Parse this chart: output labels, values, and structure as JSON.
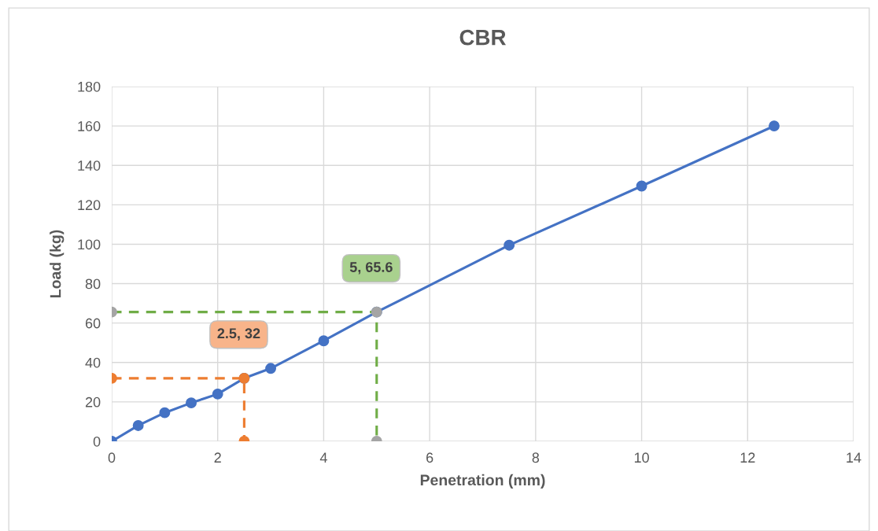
{
  "chart_data": {
    "type": "line",
    "title": "CBR",
    "xlabel": "Penetration (mm)",
    "ylabel": "Load (kg)",
    "xlim": [
      0,
      14
    ],
    "xticks": [
      0,
      2,
      4,
      6,
      8,
      10,
      12,
      14
    ],
    "ylim": [
      0,
      180
    ],
    "yticks": [
      0,
      20,
      40,
      60,
      80,
      100,
      120,
      140,
      160,
      180
    ],
    "grid": true,
    "legend": false,
    "marker": "circle",
    "series": [
      {
        "color": "#4472c4",
        "line_style": "solid",
        "x": [
          0,
          0.5,
          1,
          1.5,
          2,
          2.5,
          3,
          4,
          5,
          7.5,
          10,
          12.5
        ],
        "values": [
          0,
          8,
          14.5,
          19.5,
          24,
          32,
          37,
          51,
          65.6,
          99.5,
          129.5,
          160
        ]
      },
      {
        "color": "#ed7d31",
        "line_style": "dashed",
        "x": [
          0,
          2.5,
          2.5
        ],
        "values": [
          32,
          32,
          0
        ]
      },
      {
        "color": "#70ad47",
        "line_style": "dashed",
        "marker": "none",
        "x": [
          0,
          5,
          5
        ],
        "values": [
          65.6,
          65.6,
          0
        ]
      },
      {
        "type": "scatter",
        "color": "#a5a5a5",
        "x": [
          0,
          5,
          5
        ],
        "values": [
          65.6,
          65.6,
          0
        ]
      }
    ],
    "annotations": [
      {
        "text": "2.5, 32",
        "x": 2.5,
        "y": 32
      },
      {
        "text": "5, 65.6",
        "x": 5,
        "y": 65.6
      }
    ]
  }
}
